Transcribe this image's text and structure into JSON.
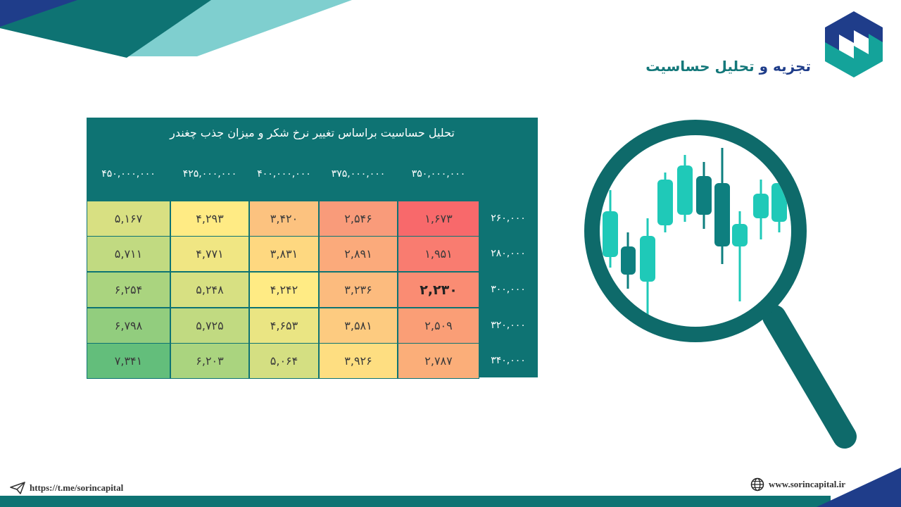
{
  "header": {
    "title_part1": "تجزیه و ",
    "title_part2": "تحلیل حساسیت"
  },
  "table": {
    "title": "تحلیل حساسیت براساس تغییر نرخ شکر و میزان جذب چغندر",
    "columns": [
      "۳۵۰,۰۰۰,۰۰۰",
      "۳۷۵,۰۰۰,۰۰۰",
      "۴۰۰,۰۰۰,۰۰۰",
      "۴۲۵,۰۰۰,۰۰۰",
      "۴۵۰,۰۰۰,۰۰۰"
    ],
    "rows": [
      "۲۶۰,۰۰۰",
      "۲۸۰,۰۰۰",
      "۳۰۰,۰۰۰",
      "۳۲۰,۰۰۰",
      "۳۴۰,۰۰۰"
    ],
    "cells": [
      [
        "۱,۶۷۳",
        "۲,۵۴۶",
        "۳,۴۲۰",
        "۴,۲۹۳",
        "۵,۱۶۷"
      ],
      [
        "۱,۹۵۱",
        "۲,۸۹۱",
        "۳,۸۳۱",
        "۴,۷۷۱",
        "۵,۷۱۱"
      ],
      [
        "۲,۲۳۰",
        "۳,۲۳۶",
        "۴,۲۴۲",
        "۵,۲۴۸",
        "۶,۲۵۴"
      ],
      [
        "۲,۵۰۹",
        "۳,۵۸۱",
        "۴,۶۵۳",
        "۵,۷۲۵",
        "۶,۷۹۸"
      ],
      [
        "۲,۷۸۷",
        "۳,۹۲۶",
        "۵,۰۶۴",
        "۶,۲۰۳",
        "۷,۳۴۱"
      ]
    ],
    "cell_colors": [
      [
        "#f8696b",
        "#f99b7a",
        "#fcc27f",
        "#ffeb84",
        "#d8e082"
      ],
      [
        "#f97c70",
        "#fbaa7b",
        "#fed880",
        "#f0e683",
        "#c1da81"
      ],
      [
        "#fa8c73",
        "#fcbb7e",
        "#ffeb84",
        "#d7e082",
        "#aad47f"
      ],
      [
        "#fa9e76",
        "#fdcb80",
        "#eae583",
        "#c1da81",
        "#92cd7e"
      ],
      [
        "#fbae79",
        "#fede81",
        "#d4df82",
        "#aad47f",
        "#63be7b"
      ]
    ],
    "highlight": {
      "row": 2,
      "col": 0
    }
  },
  "footer": {
    "telegram": "https://t.me/sorincapital",
    "website": "www.sorincapital.ir"
  },
  "colors": {
    "teal": "#0e7373",
    "navy": "#1f3d8a",
    "light_teal": "#7fcfcf",
    "candle": "#1fc9b8",
    "candle_dark": "#0e7f7f"
  }
}
